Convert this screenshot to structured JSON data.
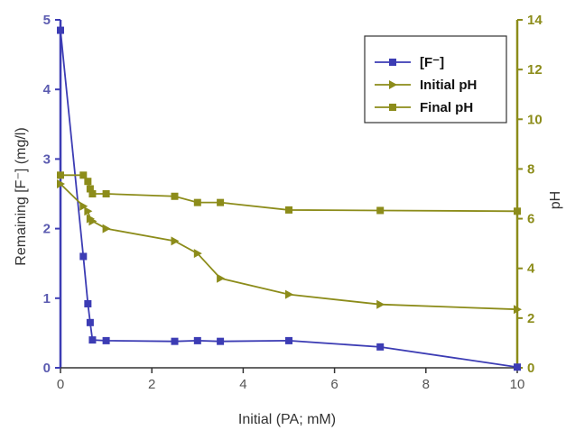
{
  "chart_data": {
    "type": "line",
    "xlabel": "Initial (PA; mM)",
    "ylabel_left": "Remaining [F⁻] (mg/l)",
    "ylabel_right": "pH",
    "xlim": [
      0,
      10
    ],
    "ylim_left": [
      0,
      5
    ],
    "ylim_right": [
      0,
      14
    ],
    "x_ticks": [
      "0",
      "2",
      "4",
      "6",
      "8",
      "10"
    ],
    "y_left_ticks": [
      "0",
      "1",
      "2",
      "3",
      "4",
      "5"
    ],
    "y_right_ticks": [
      "0",
      "2",
      "4",
      "6",
      "8",
      "10",
      "12",
      "14"
    ],
    "grid": false,
    "legend_position": "top-right",
    "series": [
      {
        "name": "[F⁻]",
        "axis": "left",
        "color": "#3c3cb4",
        "marker": "square",
        "x": [
          0,
          0.5,
          0.6,
          0.65,
          0.7,
          1,
          2.5,
          3,
          3.5,
          5,
          7,
          10
        ],
        "y": [
          4.85,
          1.6,
          0.92,
          0.65,
          0.4,
          0.39,
          0.38,
          0.39,
          0.38,
          0.39,
          0.3,
          0.01
        ]
      },
      {
        "name": "Initial pH",
        "axis": "right",
        "color": "#8c8c1a",
        "marker": "triangle-right",
        "x": [
          0,
          0.5,
          0.6,
          0.65,
          0.7,
          1,
          2.5,
          3,
          3.5,
          5,
          7,
          10
        ],
        "y": [
          7.4,
          6.5,
          6.3,
          6.0,
          5.9,
          5.6,
          5.1,
          4.6,
          3.6,
          2.95,
          2.55,
          2.35
        ]
      },
      {
        "name": "Final pH",
        "axis": "right",
        "color": "#8c8c1a",
        "marker": "square",
        "x": [
          0,
          0.5,
          0.6,
          0.65,
          0.7,
          1,
          2.5,
          3,
          3.5,
          5,
          7,
          10
        ],
        "y": [
          7.75,
          7.75,
          7.5,
          7.2,
          7.0,
          7.0,
          6.9,
          6.65,
          6.65,
          6.35,
          6.33,
          6.3
        ]
      }
    ]
  }
}
